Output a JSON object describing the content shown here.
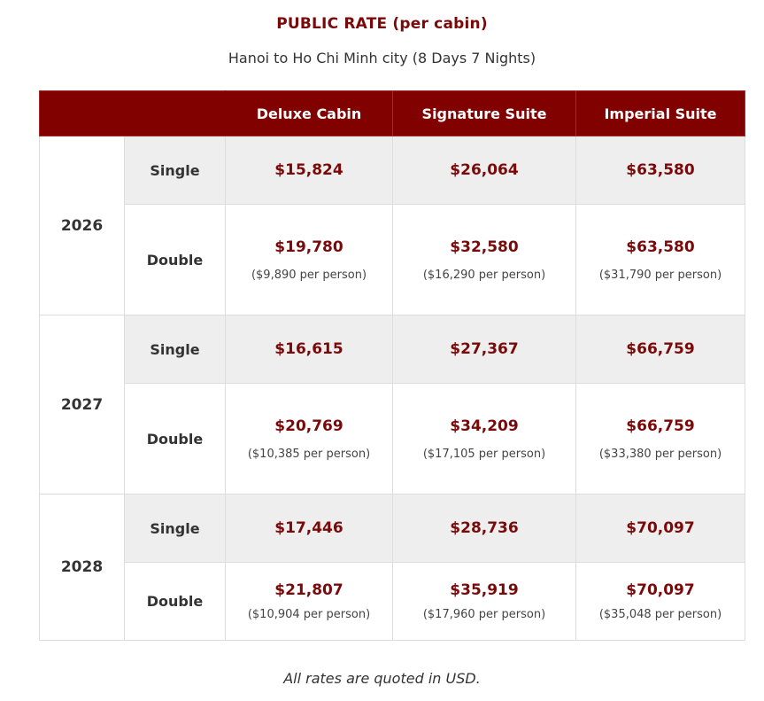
{
  "title": "PUBLIC RATE (per cabin)",
  "subtitle": "Hanoi to Ho Chi Minh city (8 Days 7 Nights)",
  "columns": [
    "Deluxe Cabin",
    "Signature Suite",
    "Imperial Suite"
  ],
  "years": [
    {
      "year": "2026",
      "single": {
        "label": "Single",
        "prices": [
          "$15,824",
          "$26,064",
          "$63,580"
        ]
      },
      "double": {
        "label": "Double",
        "prices": [
          "$19,780",
          "$32,580",
          "$63,580"
        ],
        "per_person": [
          "($9,890 per person)",
          "($16,290 per person)",
          "($31,790 per person)"
        ]
      }
    },
    {
      "year": "2027",
      "single": {
        "label": "Single",
        "prices": [
          "$16,615",
          "$27,367",
          "$66,759"
        ]
      },
      "double": {
        "label": "Double",
        "prices": [
          "$20,769",
          "$34,209",
          "$66,759"
        ],
        "per_person": [
          "($10,385 per person)",
          "($17,105 per person)",
          "($33,380 per person)"
        ]
      }
    },
    {
      "year": "2028",
      "single": {
        "label": "Single",
        "prices": [
          "$17,446",
          "$28,736",
          "$70,097"
        ]
      },
      "double": {
        "label": "Double",
        "prices": [
          "$21,807",
          "$35,919",
          "$70,097"
        ],
        "per_person": [
          "($10,904 per person)",
          "($17,960 per person)",
          "($35,048 per person)"
        ]
      }
    }
  ],
  "footnote": "All rates are quoted in USD.",
  "colors": {
    "header_bg": "#810000",
    "price_text": "#7a0a0a",
    "single_row_bg": "#eeeeee"
  }
}
